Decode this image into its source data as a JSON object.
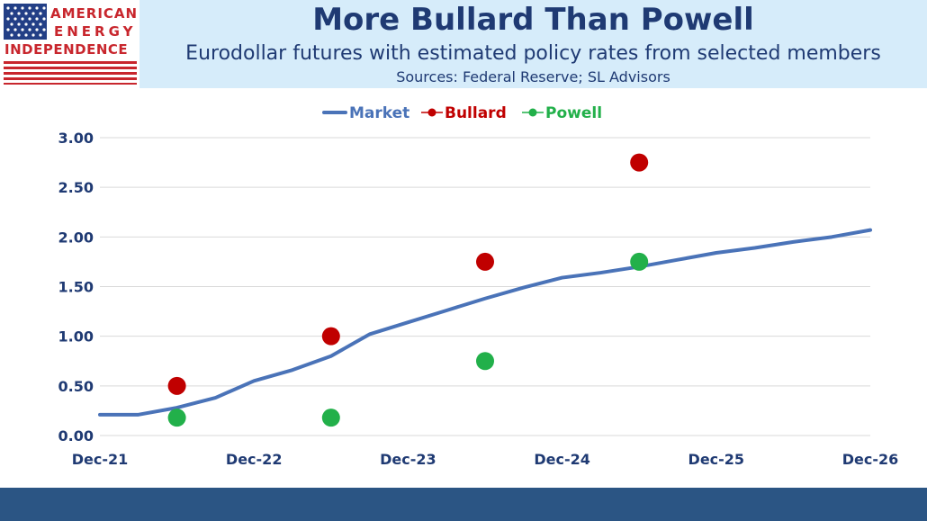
{
  "header": {
    "title": "More Bullard Than Powell",
    "subtitle": "Eurodollar futures with estimated policy rates from selected members",
    "sources": "Sources: Federal Reserve; SL Advisors"
  },
  "logo": {
    "line1": "AMERICAN",
    "line2": "ENERGY",
    "line3": "INDEPENDENCE",
    "red": "#c8262d",
    "blue": "#233f86"
  },
  "colors": {
    "market": "#4a73b8",
    "bullard": "#c00000",
    "powell": "#22b04a",
    "axis_text": "#1f3a73",
    "footer": "#2b5584",
    "banner": "#d6ecfa"
  },
  "chart_data": {
    "type": "line",
    "title": "",
    "xlabel": "",
    "ylabel": "",
    "x_tick_labels": [
      "Dec-21",
      "Dec-22",
      "Dec-23",
      "Dec-24",
      "Dec-25",
      "Dec-26"
    ],
    "xlim": [
      0,
      60
    ],
    "ylim": [
      0,
      3.0
    ],
    "y_tick_labels": [
      "0.00",
      "0.50",
      "1.00",
      "1.50",
      "2.00",
      "2.50",
      "3.00"
    ],
    "y_ticks": [
      0,
      0.5,
      1.0,
      1.5,
      2.0,
      2.5,
      3.0
    ],
    "grid": true,
    "legend_position": "top-center",
    "legend": [
      "Market",
      "Bullard",
      "Powell"
    ],
    "series": [
      {
        "name": "Market",
        "style": "line",
        "x": [
          0,
          3,
          6,
          9,
          12,
          15,
          18,
          21,
          24,
          27,
          30,
          33,
          36,
          39,
          42,
          45,
          48,
          51,
          54,
          57,
          60
        ],
        "values": [
          0.21,
          0.21,
          0.28,
          0.38,
          0.55,
          0.66,
          0.8,
          1.02,
          1.14,
          1.26,
          1.38,
          1.49,
          1.59,
          1.64,
          1.7,
          1.77,
          1.84,
          1.89,
          1.95,
          2.0,
          2.07
        ]
      },
      {
        "name": "Bullard",
        "style": "marker",
        "x": [
          6,
          18,
          30,
          42
        ],
        "values": [
          0.5,
          1.0,
          1.75,
          2.75
        ]
      },
      {
        "name": "Powell",
        "style": "marker",
        "x": [
          6,
          18,
          30,
          42
        ],
        "values": [
          0.18,
          0.18,
          0.75,
          1.75
        ]
      }
    ]
  }
}
